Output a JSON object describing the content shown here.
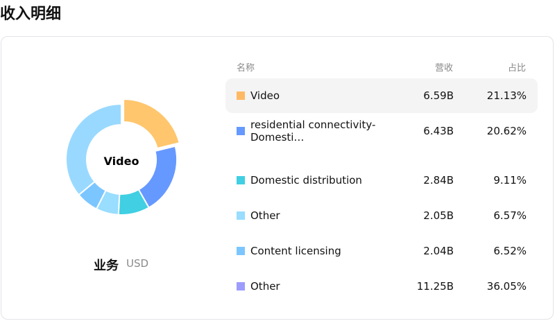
{
  "title": "收入明细",
  "business_label": "业务",
  "currency": "USD",
  "headers": {
    "name": "名称",
    "revenue": "营收",
    "share": "占比"
  },
  "chart_data": {
    "type": "pie",
    "donut": true,
    "center_label": "Video",
    "categories": [
      "Video",
      "residential connectivity-Domesti…",
      "Domestic distribution",
      "Other",
      "Content licensing",
      "Other"
    ],
    "revenue": [
      "6.59B",
      "6.43B",
      "2.84B",
      "2.05B",
      "2.04B",
      "11.25B"
    ],
    "values": [
      21.13,
      20.62,
      9.11,
      6.57,
      6.52,
      36.05
    ],
    "percent_labels": [
      "21.13%",
      "20.62%",
      "9.11%",
      "6.57%",
      "6.52%",
      "36.05%"
    ],
    "slice_colors": [
      "#ffc66d",
      "#6699ff",
      "#40cfe3",
      "#99ddff",
      "#7cc6ff",
      "#99d9ff"
    ],
    "legend_colors": [
      "#ffb964",
      "#6699ff",
      "#40cfe3",
      "#99ddff",
      "#7cc6ff",
      "#9c9cff"
    ],
    "highlighted": "Video"
  }
}
